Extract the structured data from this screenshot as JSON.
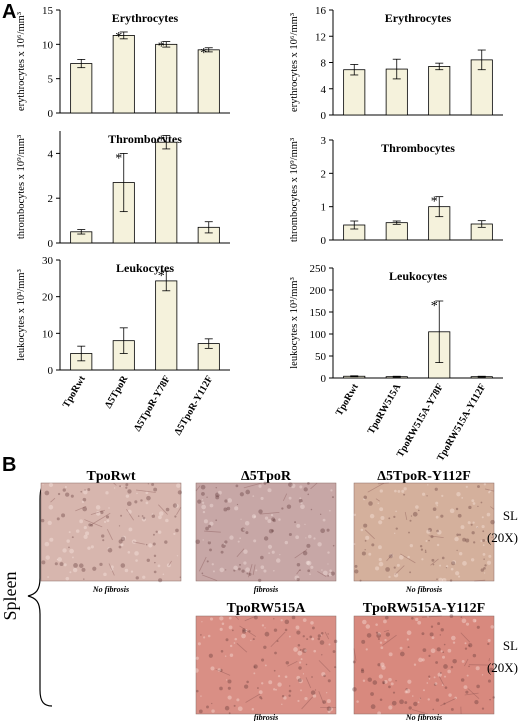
{
  "panel_a_label": "A",
  "panel_b_label": "B",
  "chart_data": [
    {
      "type": "bar",
      "title": "Erythrocytes",
      "ylabel": "erythrocytes x 10⁶/mm³",
      "categories": [
        "TpoRwt",
        "Δ5TpoR",
        "Δ5TpoR-Y78F",
        "Δ5TpoR-Y112F"
      ],
      "values": [
        7.2,
        11.3,
        10.0,
        9.2
      ],
      "errors": [
        0.6,
        0.5,
        0.4,
        0.3
      ],
      "significant": [
        false,
        true,
        true,
        true
      ],
      "ylim": [
        0,
        15
      ],
      "yticks": [
        0,
        5,
        10,
        15
      ],
      "show_categories": false
    },
    {
      "type": "bar",
      "title": "Erythrocytes",
      "ylabel": "erythrocytes x 10⁶/mm³",
      "categories": [
        "TpoRwt",
        "TpoRW515A",
        "TpoRW515A-Y78F",
        "TpoRW515A-Y112F"
      ],
      "values": [
        6.9,
        7.0,
        7.4,
        8.4
      ],
      "errors": [
        0.8,
        1.5,
        0.5,
        1.5
      ],
      "significant": [
        false,
        false,
        false,
        false
      ],
      "ylim": [
        0,
        16
      ],
      "yticks": [
        0,
        4,
        8,
        12,
        16
      ],
      "show_categories": false
    },
    {
      "type": "bar",
      "title": "Thrombocytes",
      "ylabel": "thrombocytes x 10⁹/mm³",
      "categories": [
        "TpoRwt",
        "Δ5TpoR",
        "Δ5TpoR-Y78F",
        "Δ5TpoR-Y112F"
      ],
      "values": [
        0.5,
        2.7,
        4.5,
        0.7
      ],
      "errors": [
        0.1,
        1.3,
        0.3,
        0.25
      ],
      "significant": [
        false,
        true,
        true,
        false
      ],
      "ylim": [
        0,
        5
      ],
      "yticks": [
        0,
        2,
        4
      ],
      "show_categories": false
    },
    {
      "type": "bar",
      "title": "Thrombocytes",
      "ylabel": "thrombocytes x 10⁹/mm³",
      "categories": [
        "TpoRwt",
        "TpoRW515A",
        "TpoRW515A-Y78F",
        "TpoRW515A-Y112F"
      ],
      "values": [
        0.45,
        0.52,
        1.0,
        0.48
      ],
      "errors": [
        0.12,
        0.05,
        0.3,
        0.1
      ],
      "significant": [
        false,
        false,
        true,
        false
      ],
      "ylim": [
        0,
        3
      ],
      "yticks": [
        0,
        1,
        2,
        3
      ],
      "show_categories": false
    },
    {
      "type": "bar",
      "title": "Leukocytes",
      "ylabel": "leukocytes x 10³/mm³",
      "categories": [
        "TpoRwt",
        "Δ5TpoR",
        "Δ5TpoR-Y78F",
        "Δ5TpoR-Y112F"
      ],
      "values": [
        4.5,
        8.0,
        24.3,
        7.2
      ],
      "errors": [
        2.0,
        3.5,
        2.7,
        1.3
      ],
      "significant": [
        false,
        false,
        true,
        false
      ],
      "ylim": [
        0,
        30
      ],
      "yticks": [
        0,
        10,
        20,
        30
      ],
      "show_categories": true
    },
    {
      "type": "bar",
      "title": "Leukocytes",
      "ylabel": "leukocytes x 10³/mm³",
      "categories": [
        "TpoRwt",
        "TpoRW515A",
        "TpoRW515A-Y78F",
        "TpoRW515A-Y112F"
      ],
      "values": [
        4,
        3,
        105,
        3
      ],
      "errors": [
        1,
        1,
        70,
        1
      ],
      "significant": [
        false,
        false,
        true,
        false
      ],
      "ylim": [
        0,
        250
      ],
      "yticks": [
        0,
        50,
        100,
        150,
        200,
        250
      ],
      "show_categories": true
    }
  ],
  "histology": {
    "organ": "Spleen",
    "stain_label": "SL",
    "magnification": "(20X)",
    "row1": [
      {
        "title": "TpoRwt",
        "caption": "No fibrosis",
        "tone": "#d7b6ae"
      },
      {
        "title": "Δ5TpoR",
        "caption": "fibrosis",
        "tone": "#c7a7a6"
      },
      {
        "title": "Δ5TpoR-Y112F",
        "caption": "No fibrosis",
        "tone": "#d4b09c"
      }
    ],
    "row2": [
      {
        "title": "TpoRW515A",
        "caption": "fibrosis",
        "tone": "#d98f85"
      },
      {
        "title": "TpoRW515A-Y112F",
        "caption": "No fibrosis",
        "tone": "#d8897e"
      }
    ]
  },
  "colors": {
    "bar_fill": "#f5f2dc",
    "stroke": "#000000"
  }
}
